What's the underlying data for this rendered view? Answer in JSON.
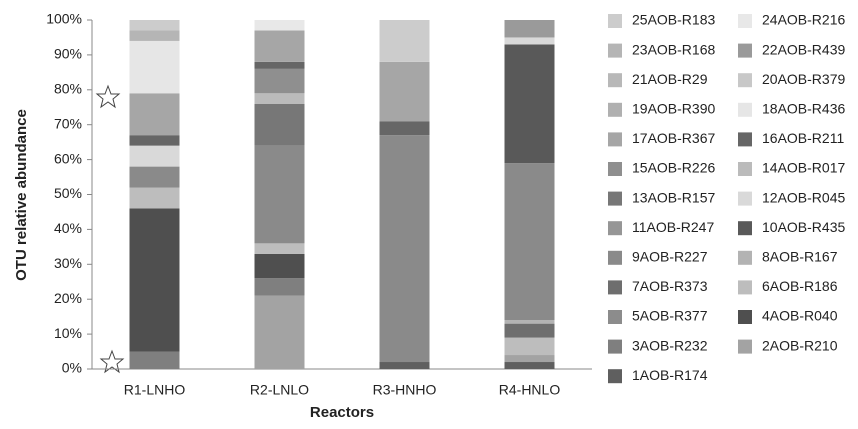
{
  "chart_data": {
    "type": "stacked_bar",
    "y_label": "OTU relative abundance",
    "x_label": "Reactors",
    "categories": [
      "R1-LNHO",
      "R2-LNLO",
      "R3-HNHO",
      "R4-HNLO"
    ],
    "ylim": [
      0,
      100
    ],
    "yticks": [
      {
        "value": 0,
        "label": "0%"
      },
      {
        "value": 10,
        "label": "10%"
      },
      {
        "value": 20,
        "label": "20%"
      },
      {
        "value": 30,
        "label": "30%"
      },
      {
        "value": 40,
        "label": "40%"
      },
      {
        "value": 50,
        "label": "50%"
      },
      {
        "value": 60,
        "label": "60%"
      },
      {
        "value": 70,
        "label": "70%"
      },
      {
        "value": 80,
        "label": "80%"
      },
      {
        "value": 90,
        "label": "90%"
      },
      {
        "value": 100,
        "label": "100%"
      }
    ],
    "series": [
      {
        "name": "1AOB-R174",
        "color": "#5f5f5f",
        "values": [
          0,
          0,
          2,
          2
        ]
      },
      {
        "name": "2AOB-R210",
        "color": "#a3a3a3",
        "values": [
          0,
          21,
          0,
          2
        ]
      },
      {
        "name": "3AOB-R232",
        "color": "#7f7f7f",
        "values": [
          5,
          5,
          0,
          0
        ]
      },
      {
        "name": "4AOB-R040",
        "color": "#4f4f4f",
        "values": [
          41,
          7,
          0,
          0
        ]
      },
      {
        "name": "5AOB-R377",
        "color": "#8c8c8c",
        "values": [
          0,
          0,
          0,
          0
        ]
      },
      {
        "name": "6AOB-R186",
        "color": "#bdbdbd",
        "values": [
          6,
          3,
          0,
          5
        ]
      },
      {
        "name": "7AOB-R373",
        "color": "#6e6e6e",
        "values": [
          0,
          0,
          0,
          4
        ]
      },
      {
        "name": "8AOB-R167",
        "color": "#b3b3b3",
        "values": [
          0,
          0,
          0,
          1
        ]
      },
      {
        "name": "9AOB-R227",
        "color": "#8a8a8a",
        "values": [
          6,
          28,
          65,
          45
        ]
      },
      {
        "name": "10AOB-R435",
        "color": "#595959",
        "values": [
          0,
          0,
          0,
          34
        ]
      },
      {
        "name": "11AOB-R247",
        "color": "#969696",
        "values": [
          0,
          0,
          0,
          0
        ]
      },
      {
        "name": "12AOB-R045",
        "color": "#d9d9d9",
        "values": [
          6,
          0,
          0,
          2
        ]
      },
      {
        "name": "13AOB-R157",
        "color": "#777777",
        "values": [
          0,
          12,
          0,
          0
        ]
      },
      {
        "name": "14AOB-R017",
        "color": "#bbbbbb",
        "values": [
          0,
          3,
          0,
          0
        ]
      },
      {
        "name": "15AOB-R226",
        "color": "#8f8f8f",
        "values": [
          0,
          7,
          0,
          0
        ]
      },
      {
        "name": "16AOB-R211",
        "color": "#666666",
        "values": [
          3,
          2,
          4,
          0
        ]
      },
      {
        "name": "17AOB-R367",
        "color": "#a6a6a6",
        "values": [
          12,
          9,
          17,
          0
        ]
      },
      {
        "name": "18AOB-R436",
        "color": "#e6e6e6",
        "values": [
          15,
          0,
          0,
          0
        ]
      },
      {
        "name": "19AOB-R390",
        "color": "#b0b0b0",
        "values": [
          0,
          0,
          0,
          0
        ]
      },
      {
        "name": "20AOB-R379",
        "color": "#c8c8c8",
        "values": [
          0,
          0,
          0,
          0
        ]
      },
      {
        "name": "21AOB-R29",
        "color": "#b8b8b8",
        "values": [
          0,
          0,
          0,
          0
        ]
      },
      {
        "name": "22AOB-R439",
        "color": "#9a9a9a",
        "values": [
          0,
          0,
          0,
          5
        ]
      },
      {
        "name": "23AOB-R168",
        "color": "#b5b5b5",
        "values": [
          3,
          0,
          0,
          0
        ]
      },
      {
        "name": "24AOB-R216",
        "color": "#e8e8e8",
        "values": [
          0,
          3,
          0,
          0
        ]
      },
      {
        "name": "25AOB-R183",
        "color": "#cccccc",
        "values": [
          3,
          0,
          12,
          0
        ]
      }
    ]
  }
}
